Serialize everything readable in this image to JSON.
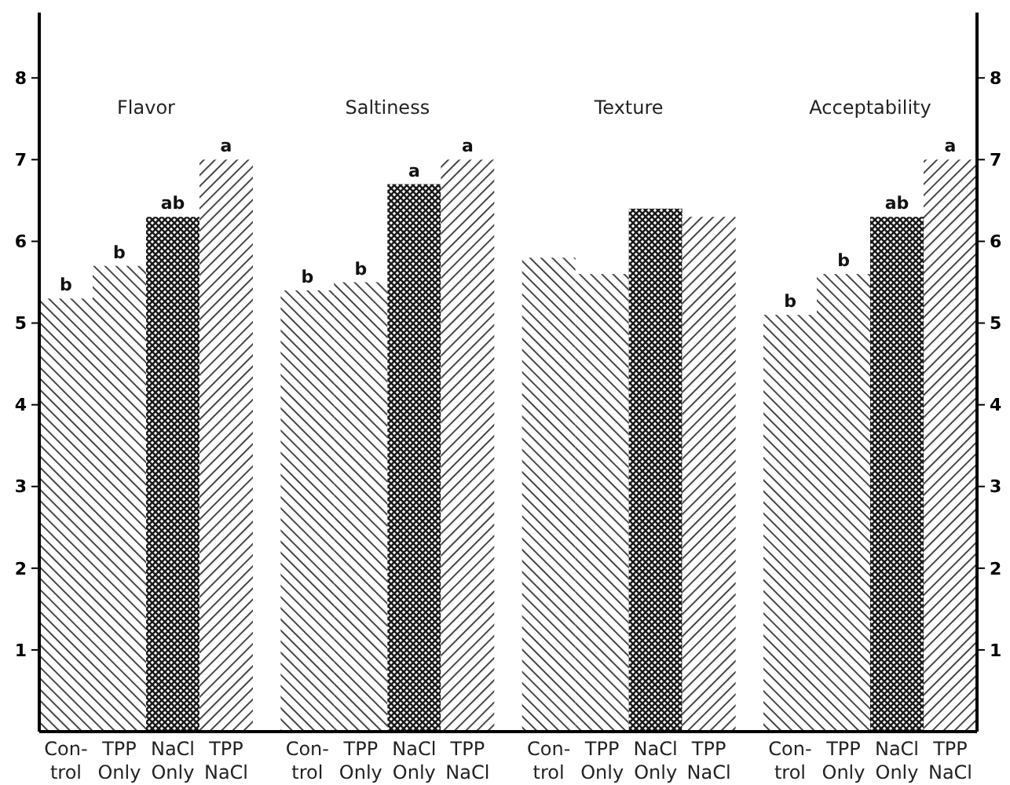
{
  "chart_data": {
    "type": "bar",
    "categories": [
      "Flavor",
      "Saltiness",
      "Texture",
      "Acceptability"
    ],
    "series": [
      {
        "name": "Con- trol",
        "color": "#333333",
        "values": [
          5.3,
          5.4,
          5.8,
          5.1
        ],
        "value_labels": [
          "b",
          "b",
          null,
          "b"
        ]
      },
      {
        "name": "TPP Only",
        "color": "#333333",
        "values": [
          5.7,
          5.5,
          5.6,
          5.6
        ],
        "value_labels": [
          "b",
          "b",
          null,
          "b"
        ]
      },
      {
        "name": "NaCl Only",
        "color": "#1a1a1a",
        "values": [
          6.3,
          6.7,
          6.4,
          6.3
        ],
        "value_labels": [
          "ab",
          "a",
          null,
          "ab"
        ]
      },
      {
        "name": "TPP NaCl",
        "color": "#333333",
        "values": [
          7.0,
          7.0,
          6.3,
          7.0
        ],
        "value_labels": [
          "a",
          "a",
          null,
          "a"
        ]
      }
    ],
    "ylim": [
      0,
      8.8
    ],
    "yticks": [
      1,
      2,
      3,
      4,
      5,
      6,
      7,
      8
    ],
    "y2lim": [
      0,
      8.8
    ],
    "y2ticks": [
      1,
      2,
      3,
      4,
      5,
      6,
      7,
      8
    ],
    "grid": false
  }
}
